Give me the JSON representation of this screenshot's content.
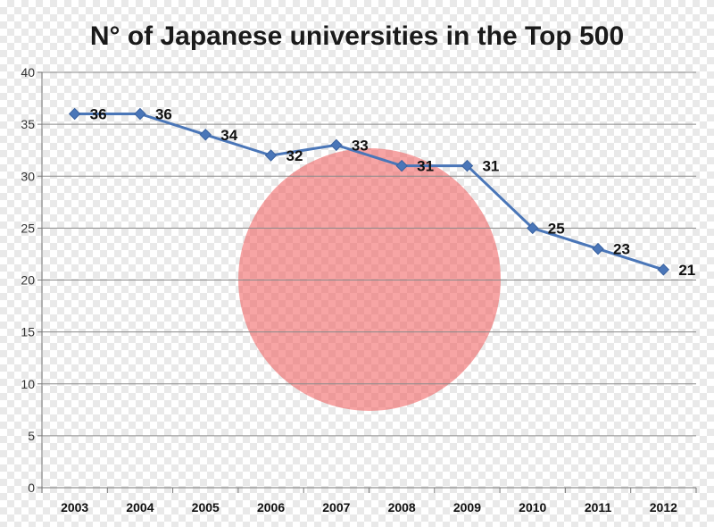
{
  "chart_data": {
    "type": "line",
    "title": "N° of Japanese universities in the Top 500",
    "xlabel": "",
    "ylabel": "",
    "categories": [
      "2003",
      "2004",
      "2005",
      "2006",
      "2007",
      "2008",
      "2009",
      "2010",
      "2011",
      "2012"
    ],
    "series": [
      {
        "values": [
          36,
          36,
          34,
          32,
          33,
          31,
          31,
          25,
          23,
          21
        ],
        "color": "#4a76b8"
      }
    ],
    "ylim": [
      0,
      40
    ],
    "yticks": [
      "0",
      "5",
      "10",
      "15",
      "20",
      "25",
      "30",
      "35",
      "40"
    ],
    "data_labels": [
      "36",
      "36",
      "34",
      "32",
      "33",
      "31",
      "31",
      "25",
      "23",
      "21"
    ],
    "grid": true,
    "legend": "none",
    "background_decoration": {
      "shape": "circle",
      "color": "#f05a5a",
      "meaning": "Japan flag sun disc"
    }
  }
}
